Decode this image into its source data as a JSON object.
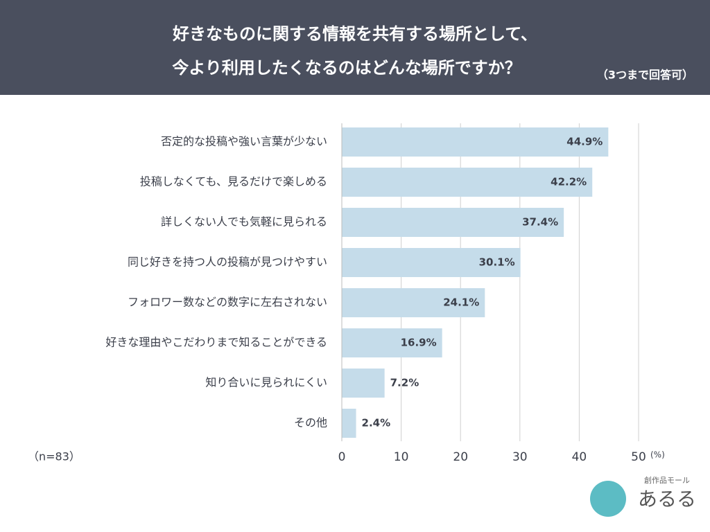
{
  "chart_data": {
    "type": "bar",
    "orientation": "horizontal",
    "title": [
      "好きなものに関する情報を共有する場所として、",
      "今より利用したくなるのはどんな場所ですか？"
    ],
    "subtitle": "（3つまで回答可）",
    "note": "（n=83）",
    "x_unit": "(%)",
    "categories": [
      "否定的な投稿や強い言葉が少ない",
      "投稿しなくても、見るだけで楽しめる",
      "詳しくない人でも気軽に見られる",
      "同じ好きを持つ人の投稿が見つけやすい",
      "フォロワー数などの数字に左右されない",
      "好きな理由やこだわりまで知ることができる",
      "知り合いに見られにくい",
      "その他"
    ],
    "values": [
      44.9,
      42.2,
      37.4,
      30.1,
      24.1,
      16.9,
      7.2,
      2.4
    ],
    "value_labels": [
      "44.9%",
      "42.2%",
      "37.4%",
      "30.1%",
      "24.1%",
      "16.9%",
      "7.2%",
      "2.4%"
    ],
    "color": "#c5dcea",
    "xlim": [
      0,
      50
    ],
    "xticks": [
      0,
      10,
      20,
      30,
      40,
      50
    ],
    "grid": true,
    "logo": {
      "tagline": "創作品モール",
      "name": "あるる"
    }
  }
}
